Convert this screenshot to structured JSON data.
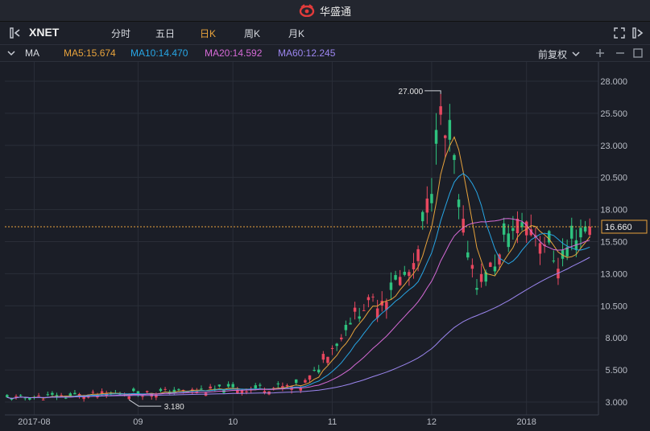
{
  "app": {
    "title": "华盛通",
    "logo_icon": "huasheng-logo-icon"
  },
  "toolbar": {
    "symbol": "XNET",
    "tabs": [
      {
        "label": "分时",
        "active": false
      },
      {
        "label": "五日",
        "active": false
      },
      {
        "label": "日K",
        "active": true
      },
      {
        "label": "周K",
        "active": false
      },
      {
        "label": "月K",
        "active": false
      }
    ],
    "left_icon": "sidebar-toggle-icon",
    "right_icons": [
      "fullscreen-icon",
      "close-icon"
    ]
  },
  "indicators": {
    "name": "MA",
    "ma5": "MA5:15.674",
    "ma10": "MA10:14.470",
    "ma20": "MA20:14.592",
    "ma60": "MA60:12.245",
    "adjust": "前复权",
    "colors": {
      "ma5": "#e8a33c",
      "ma10": "#27a6e5",
      "ma20": "#d56ad6",
      "ma60": "#9c86f0"
    }
  },
  "chart_data": {
    "type": "candlestick",
    "y_ticks": [
      "28.000",
      "25.500",
      "23.000",
      "20.500",
      "18.000",
      "15.500",
      "13.000",
      "10.500",
      "8.000",
      "5.500",
      "3.000"
    ],
    "y_tick_values": [
      28,
      25.5,
      23,
      20.5,
      18,
      15.5,
      13,
      10.5,
      8,
      5.5,
      3
    ],
    "ylim": [
      2.0,
      29.5
    ],
    "x_ticks": [
      "2017-08",
      "09",
      "10",
      "11",
      "12",
      "2018"
    ],
    "last_price": "16.660",
    "last_value": 16.66,
    "max_label": "27.000",
    "max_value": 27.0,
    "min_label": "3.180",
    "min_value": 3.18,
    "colors": {
      "up": "#e8475f",
      "down": "#2ec27e",
      "grid": "#2a2e38",
      "axis_text": "#b9bdc6"
    },
    "segments": [
      {
        "from": "2017-07-24",
        "to": "2017-10-20",
        "start": 3.3,
        "end": 4.2
      },
      {
        "from": "2017-10-23",
        "to": "2017-11-10",
        "start": 4.2,
        "end": 10.5
      },
      {
        "from": "2017-11-13",
        "to": "2017-11-24",
        "start": 10.5,
        "end": 13.0
      },
      {
        "from": "2017-11-27",
        "to": "2017-12-04",
        "start": 13.0,
        "end": 24.8
      },
      {
        "from": "2017-12-05",
        "to": "2017-12-15",
        "start": 24.8,
        "end": 12.5
      },
      {
        "from": "2017-12-18",
        "to": "2017-12-29",
        "start": 12.5,
        "end": 17.0
      },
      {
        "from": "2018-01-01",
        "to": "2018-01-10",
        "start": 17.0,
        "end": 14.0
      },
      {
        "from": "2018-01-11",
        "to": "2018-01-19",
        "start": 14.0,
        "end": 16.66
      }
    ]
  }
}
